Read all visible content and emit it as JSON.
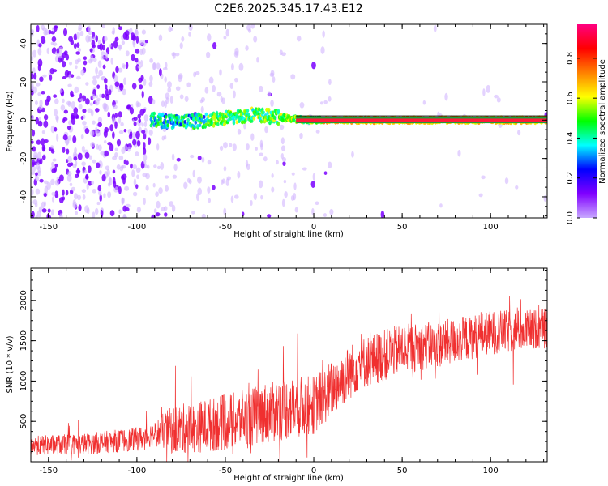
{
  "page": {
    "title": "C2E6.2025.345.17.43.E12"
  },
  "chart_data": [
    {
      "type": "heatmap",
      "xlabel": "Height of straight line (km)",
      "ylabel": "Frequency (Hz)",
      "xlim": [
        -160,
        132
      ],
      "ylim": [
        -51,
        50
      ],
      "xticks": [
        -150,
        -100,
        -50,
        0,
        50,
        100
      ],
      "yticks": [
        -40,
        -20,
        0,
        20,
        40
      ],
      "colorbar": {
        "label": "Normalized spectral amplitude",
        "range": [
          0,
          0.97
        ],
        "ticks": [
          0.0,
          0.2,
          0.4,
          0.6,
          0.8
        ],
        "colormap": "rainbow",
        "colors": [
          "#c8a8ff",
          "#8000ff",
          "#0000ff",
          "#00ffff",
          "#00ff00",
          "#ffff00",
          "#ff8000",
          "#ff0000",
          "#ff0080"
        ]
      },
      "ridge": {
        "description_points": [
          {
            "x": -90,
            "y": 0
          },
          {
            "x": -75,
            "y": -1
          },
          {
            "x": -60,
            "y": 0
          },
          {
            "x": -45,
            "y": 1.5
          },
          {
            "x": -35,
            "y": 3
          },
          {
            "x": -25,
            "y": 2
          },
          {
            "x": -10,
            "y": 0.5
          },
          {
            "x": 0,
            "y": 0
          },
          {
            "x": 50,
            "y": 0
          },
          {
            "x": 100,
            "y": 0
          },
          {
            "x": 132,
            "y": 0
          }
        ]
      }
    },
    {
      "type": "line",
      "xlabel": "Height of straight line (km)",
      "ylabel": "SNR (10 * v/v)",
      "xlim": [
        -160,
        132
      ],
      "ylim": [
        0,
        2400
      ],
      "xticks": [
        -150,
        -100,
        -50,
        0,
        50,
        100
      ],
      "yticks": [
        500,
        1000,
        1500,
        2000
      ],
      "color": "#f03030",
      "trend": [
        {
          "x": -160,
          "y": 200
        },
        {
          "x": -130,
          "y": 220
        },
        {
          "x": -100,
          "y": 280
        },
        {
          "x": -85,
          "y": 380
        },
        {
          "x": -60,
          "y": 450
        },
        {
          "x": -40,
          "y": 520
        },
        {
          "x": -20,
          "y": 650
        },
        {
          "x": 0,
          "y": 700
        },
        {
          "x": 10,
          "y": 900
        },
        {
          "x": 25,
          "y": 1200
        },
        {
          "x": 50,
          "y": 1400
        },
        {
          "x": 70,
          "y": 1450
        },
        {
          "x": 100,
          "y": 1600
        },
        {
          "x": 132,
          "y": 1650
        }
      ],
      "spread": [
        {
          "x": -160,
          "y": 120
        },
        {
          "x": -90,
          "y": 150
        },
        {
          "x": -80,
          "y": 300
        },
        {
          "x": -20,
          "y": 400
        },
        {
          "x": 10,
          "y": 350
        },
        {
          "x": 60,
          "y": 300
        },
        {
          "x": 132,
          "y": 250
        }
      ]
    }
  ]
}
